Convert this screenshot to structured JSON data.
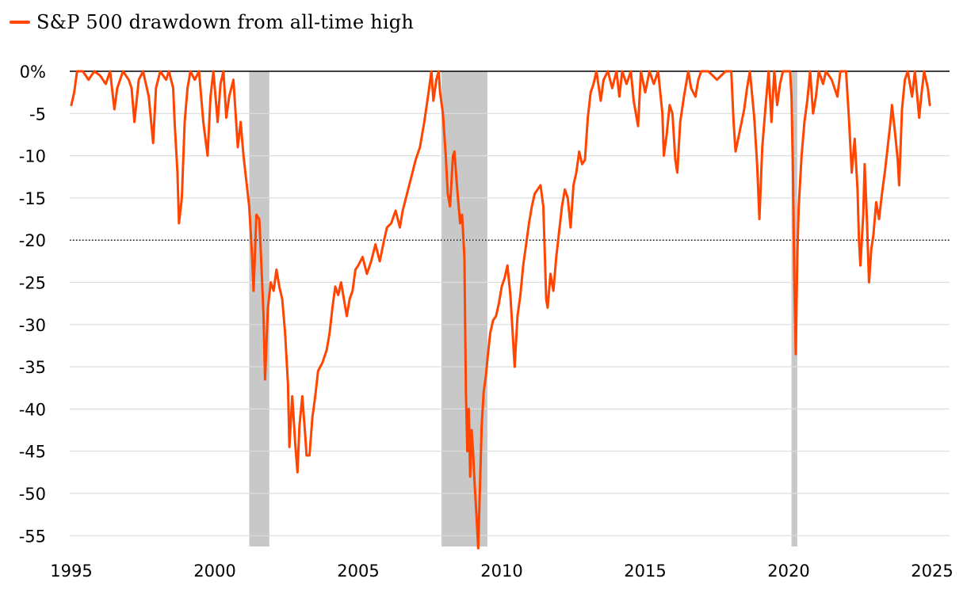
{
  "chart_data": {
    "type": "line",
    "legend": {
      "label": "S&P 500 drawdown from all-time high",
      "position": "top-left"
    },
    "title": "",
    "xlabel": "",
    "ylabel": "",
    "xlim": [
      1995,
      2025
    ],
    "ylim": [
      -56.5,
      0
    ],
    "yticks": [
      0,
      -5,
      -10,
      -15,
      -20,
      -25,
      -30,
      -35,
      -40,
      -45,
      -50,
      -55
    ],
    "ytick_labels": [
      "0%",
      "-5",
      "-10",
      "-15",
      "-20",
      "-25",
      "-30",
      "-35",
      "-40",
      "-45",
      "-50",
      "-55"
    ],
    "xticks": [
      1995,
      2000,
      2005,
      2010,
      2015,
      2020,
      2025
    ],
    "xtick_labels": [
      "1995",
      "2000",
      "2005",
      "2010",
      "2015",
      "2020",
      "2025"
    ],
    "reference_lines": [
      {
        "y": 0,
        "style": "solid"
      },
      {
        "y": -20,
        "style": "dotted"
      }
    ],
    "grid": true,
    "shaded_periods": [
      {
        "start": 2001.2,
        "end": 2001.9
      },
      {
        "start": 2007.9,
        "end": 2009.5
      },
      {
        "start": 2020.1,
        "end": 2020.3
      }
    ],
    "colors": {
      "line": "#ff4500",
      "shade": "#c8c8c8",
      "grid": "#dddddd"
    },
    "series": [
      {
        "name": "S&P 500 drawdown from all-time high",
        "points": [
          [
            1995.0,
            -4.0
          ],
          [
            1995.1,
            -2.5
          ],
          [
            1995.2,
            0
          ],
          [
            1995.4,
            0
          ],
          [
            1995.6,
            -1.0
          ],
          [
            1995.8,
            0
          ],
          [
            1996.0,
            -0.5
          ],
          [
            1996.2,
            -1.5
          ],
          [
            1996.35,
            0
          ],
          [
            1996.5,
            -4.5
          ],
          [
            1996.6,
            -2.0
          ],
          [
            1996.8,
            0
          ],
          [
            1997.0,
            -1.0
          ],
          [
            1997.1,
            -2.0
          ],
          [
            1997.2,
            -6.0
          ],
          [
            1997.35,
            -1.0
          ],
          [
            1997.5,
            0
          ],
          [
            1997.7,
            -3.0
          ],
          [
            1997.85,
            -8.5
          ],
          [
            1997.95,
            -2.0
          ],
          [
            1998.1,
            0
          ],
          [
            1998.3,
            -1.0
          ],
          [
            1998.4,
            0
          ],
          [
            1998.55,
            -2.0
          ],
          [
            1998.6,
            -6.0
          ],
          [
            1998.7,
            -12.0
          ],
          [
            1998.75,
            -18.0
          ],
          [
            1998.85,
            -15.0
          ],
          [
            1998.95,
            -6.0
          ],
          [
            1999.05,
            -2.0
          ],
          [
            1999.15,
            0
          ],
          [
            1999.3,
            -1.0
          ],
          [
            1999.45,
            0
          ],
          [
            1999.6,
            -6.0
          ],
          [
            1999.75,
            -10.0
          ],
          [
            1999.85,
            -3.0
          ],
          [
            1999.95,
            0
          ],
          [
            2000.1,
            -6.0
          ],
          [
            2000.2,
            -1.5
          ],
          [
            2000.3,
            0
          ],
          [
            2000.4,
            -5.5
          ],
          [
            2000.5,
            -3.0
          ],
          [
            2000.65,
            -1.0
          ],
          [
            2000.8,
            -9.0
          ],
          [
            2000.9,
            -6.0
          ],
          [
            2001.0,
            -10.0
          ],
          [
            2001.1,
            -13.0
          ],
          [
            2001.2,
            -16.0
          ],
          [
            2001.3,
            -22.0
          ],
          [
            2001.35,
            -26.0
          ],
          [
            2001.45,
            -17.0
          ],
          [
            2001.55,
            -17.5
          ],
          [
            2001.6,
            -21.0
          ],
          [
            2001.7,
            -29.0
          ],
          [
            2001.75,
            -36.5
          ],
          [
            2001.85,
            -28.0
          ],
          [
            2001.95,
            -25.0
          ],
          [
            2002.05,
            -26.0
          ],
          [
            2002.15,
            -23.5
          ],
          [
            2002.25,
            -25.5
          ],
          [
            2002.35,
            -27.0
          ],
          [
            2002.45,
            -31.0
          ],
          [
            2002.55,
            -37.0
          ],
          [
            2002.6,
            -44.5
          ],
          [
            2002.7,
            -38.5
          ],
          [
            2002.8,
            -44.0
          ],
          [
            2002.88,
            -47.5
          ],
          [
            2002.95,
            -42.0
          ],
          [
            2003.05,
            -38.5
          ],
          [
            2003.15,
            -43.0
          ],
          [
            2003.2,
            -45.5
          ],
          [
            2003.3,
            -45.5
          ],
          [
            2003.4,
            -41.0
          ],
          [
            2003.5,
            -38.5
          ],
          [
            2003.6,
            -35.5
          ],
          [
            2003.75,
            -34.5
          ],
          [
            2003.9,
            -33.0
          ],
          [
            2004.0,
            -31.0
          ],
          [
            2004.1,
            -28.0
          ],
          [
            2004.2,
            -25.5
          ],
          [
            2004.3,
            -26.5
          ],
          [
            2004.4,
            -25.0
          ],
          [
            2004.5,
            -27.0
          ],
          [
            2004.6,
            -29.0
          ],
          [
            2004.7,
            -27.0
          ],
          [
            2004.8,
            -26.0
          ],
          [
            2004.9,
            -23.5
          ],
          [
            2005.0,
            -23.0
          ],
          [
            2005.15,
            -22.0
          ],
          [
            2005.3,
            -24.0
          ],
          [
            2005.45,
            -22.5
          ],
          [
            2005.6,
            -20.5
          ],
          [
            2005.75,
            -22.5
          ],
          [
            2005.9,
            -20.0
          ],
          [
            2006.0,
            -18.5
          ],
          [
            2006.15,
            -18.0
          ],
          [
            2006.3,
            -16.5
          ],
          [
            2006.45,
            -18.5
          ],
          [
            2006.55,
            -16.5
          ],
          [
            2006.7,
            -14.5
          ],
          [
            2006.85,
            -12.5
          ],
          [
            2007.0,
            -10.5
          ],
          [
            2007.15,
            -9.0
          ],
          [
            2007.3,
            -6.0
          ],
          [
            2007.45,
            -2.5
          ],
          [
            2007.55,
            0
          ],
          [
            2007.62,
            -3.5
          ],
          [
            2007.72,
            -1.0
          ],
          [
            2007.8,
            0
          ],
          [
            2007.85,
            -2.5
          ],
          [
            2007.95,
            -5.0
          ],
          [
            2008.05,
            -10.0
          ],
          [
            2008.12,
            -14.5
          ],
          [
            2008.2,
            -16.0
          ],
          [
            2008.3,
            -10.0
          ],
          [
            2008.35,
            -9.5
          ],
          [
            2008.45,
            -14.0
          ],
          [
            2008.55,
            -18.0
          ],
          [
            2008.62,
            -17.0
          ],
          [
            2008.7,
            -22.0
          ],
          [
            2008.75,
            -38.0
          ],
          [
            2008.8,
            -45.0
          ],
          [
            2008.85,
            -40.0
          ],
          [
            2008.9,
            -48.0
          ],
          [
            2008.95,
            -42.5
          ],
          [
            2009.0,
            -45.0
          ],
          [
            2009.05,
            -48.5
          ],
          [
            2009.12,
            -52.5
          ],
          [
            2009.18,
            -56.5
          ],
          [
            2009.25,
            -48.0
          ],
          [
            2009.3,
            -42.0
          ],
          [
            2009.37,
            -38.0
          ],
          [
            2009.45,
            -36.0
          ],
          [
            2009.52,
            -33.5
          ],
          [
            2009.6,
            -31.0
          ],
          [
            2009.7,
            -29.5
          ],
          [
            2009.8,
            -29.0
          ],
          [
            2009.9,
            -27.5
          ],
          [
            2010.0,
            -25.5
          ],
          [
            2010.1,
            -24.5
          ],
          [
            2010.2,
            -23.0
          ],
          [
            2010.3,
            -26.5
          ],
          [
            2010.38,
            -31.0
          ],
          [
            2010.45,
            -35.0
          ],
          [
            2010.55,
            -29.0
          ],
          [
            2010.65,
            -26.5
          ],
          [
            2010.75,
            -23.0
          ],
          [
            2010.85,
            -20.5
          ],
          [
            2010.95,
            -18.0
          ],
          [
            2011.05,
            -16.0
          ],
          [
            2011.15,
            -14.5
          ],
          [
            2011.25,
            -14.0
          ],
          [
            2011.35,
            -13.5
          ],
          [
            2011.45,
            -16.0
          ],
          [
            2011.55,
            -27.0
          ],
          [
            2011.6,
            -28.0
          ],
          [
            2011.7,
            -24.0
          ],
          [
            2011.8,
            -26.0
          ],
          [
            2011.9,
            -22.0
          ],
          [
            2012.0,
            -19.0
          ],
          [
            2012.1,
            -16.0
          ],
          [
            2012.2,
            -14.0
          ],
          [
            2012.3,
            -15.0
          ],
          [
            2012.4,
            -18.5
          ],
          [
            2012.5,
            -13.5
          ],
          [
            2012.6,
            -12.0
          ],
          [
            2012.7,
            -9.5
          ],
          [
            2012.8,
            -11.0
          ],
          [
            2012.9,
            -10.5
          ],
          [
            2013.0,
            -5.5
          ],
          [
            2013.1,
            -2.5
          ],
          [
            2013.2,
            -1.5
          ],
          [
            2013.3,
            0
          ],
          [
            2013.45,
            -3.5
          ],
          [
            2013.55,
            -1.0
          ],
          [
            2013.7,
            0
          ],
          [
            2013.85,
            -2.0
          ],
          [
            2014.0,
            0
          ],
          [
            2014.1,
            -3.0
          ],
          [
            2014.2,
            0
          ],
          [
            2014.35,
            -1.5
          ],
          [
            2014.5,
            0
          ],
          [
            2014.6,
            -3.5
          ],
          [
            2014.75,
            -6.5
          ],
          [
            2014.85,
            0
          ],
          [
            2015.0,
            -2.5
          ],
          [
            2015.15,
            0
          ],
          [
            2015.3,
            -1.5
          ],
          [
            2015.45,
            0
          ],
          [
            2015.6,
            -5.0
          ],
          [
            2015.65,
            -10.0
          ],
          [
            2015.75,
            -7.5
          ],
          [
            2015.85,
            -4.0
          ],
          [
            2015.95,
            -5.0
          ],
          [
            2016.05,
            -10.5
          ],
          [
            2016.12,
            -12.0
          ],
          [
            2016.22,
            -6.0
          ],
          [
            2016.35,
            -3.0
          ],
          [
            2016.5,
            0
          ],
          [
            2016.6,
            -2.0
          ],
          [
            2016.75,
            -3.0
          ],
          [
            2016.85,
            -1.0
          ],
          [
            2016.95,
            0
          ],
          [
            2017.2,
            0
          ],
          [
            2017.5,
            -1.0
          ],
          [
            2017.8,
            0
          ],
          [
            2018.0,
            0
          ],
          [
            2018.08,
            -6.0
          ],
          [
            2018.15,
            -9.5
          ],
          [
            2018.3,
            -7.0
          ],
          [
            2018.45,
            -4.5
          ],
          [
            2018.55,
            -2.0
          ],
          [
            2018.65,
            0
          ],
          [
            2018.8,
            -5.5
          ],
          [
            2018.9,
            -11.0
          ],
          [
            2018.98,
            -17.5
          ],
          [
            2019.08,
            -9.0
          ],
          [
            2019.2,
            -4.0
          ],
          [
            2019.3,
            0
          ],
          [
            2019.4,
            -6.0
          ],
          [
            2019.5,
            0
          ],
          [
            2019.6,
            -4.0
          ],
          [
            2019.7,
            -1.5
          ],
          [
            2019.8,
            0
          ],
          [
            2019.95,
            0
          ],
          [
            2020.05,
            0
          ],
          [
            2020.1,
            -3.0
          ],
          [
            2020.15,
            -12.0
          ],
          [
            2020.2,
            -25.0
          ],
          [
            2020.25,
            -33.5
          ],
          [
            2020.3,
            -22.0
          ],
          [
            2020.35,
            -16.0
          ],
          [
            2020.45,
            -10.0
          ],
          [
            2020.55,
            -6.0
          ],
          [
            2020.65,
            -3.5
          ],
          [
            2020.75,
            0
          ],
          [
            2020.85,
            -5.0
          ],
          [
            2020.95,
            -3.0
          ],
          [
            2021.05,
            0
          ],
          [
            2021.2,
            -1.5
          ],
          [
            2021.3,
            0
          ],
          [
            2021.5,
            -1.0
          ],
          [
            2021.7,
            -3.0
          ],
          [
            2021.8,
            0
          ],
          [
            2022.0,
            0
          ],
          [
            2022.1,
            -5.5
          ],
          [
            2022.2,
            -12.0
          ],
          [
            2022.3,
            -8.0
          ],
          [
            2022.4,
            -14.0
          ],
          [
            2022.45,
            -20.0
          ],
          [
            2022.5,
            -23.0
          ],
          [
            2022.6,
            -17.0
          ],
          [
            2022.65,
            -11.0
          ],
          [
            2022.72,
            -17.0
          ],
          [
            2022.8,
            -25.0
          ],
          [
            2022.88,
            -21.0
          ],
          [
            2022.95,
            -19.5
          ],
          [
            2023.05,
            -15.5
          ],
          [
            2023.15,
            -17.5
          ],
          [
            2023.25,
            -14.5
          ],
          [
            2023.35,
            -12.0
          ],
          [
            2023.45,
            -9.0
          ],
          [
            2023.55,
            -6.0
          ],
          [
            2023.6,
            -4.0
          ],
          [
            2023.7,
            -7.0
          ],
          [
            2023.8,
            -10.5
          ],
          [
            2023.85,
            -13.5
          ],
          [
            2023.95,
            -4.5
          ],
          [
            2024.05,
            -1.0
          ],
          [
            2024.15,
            0
          ],
          [
            2024.3,
            -3.0
          ],
          [
            2024.4,
            0
          ],
          [
            2024.55,
            -5.5
          ],
          [
            2024.62,
            -3.0
          ],
          [
            2024.72,
            0
          ],
          [
            2024.85,
            -2.0
          ],
          [
            2024.92,
            -4.0
          ]
        ]
      }
    ]
  }
}
